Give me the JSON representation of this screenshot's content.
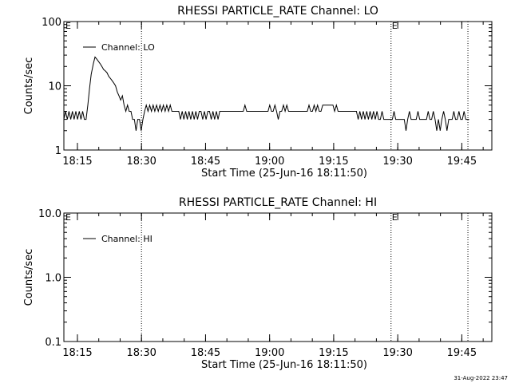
{
  "footer": {
    "timestamp": "31-Aug-2022 23:47"
  },
  "colors": {
    "background": "#ffffff",
    "foreground": "#000000"
  },
  "chart_data": [
    {
      "type": "line",
      "title": "RHESSI PARTICLE_RATE Channel: LO",
      "xlabel": "Start Time (25-Jun-16 18:11:50)",
      "ylabel": "Counts/sec",
      "yscale": "log",
      "ylim": [
        1,
        100
      ],
      "xlim_minutes": [
        0,
        100.2
      ],
      "xticks": [
        {
          "label": "18:15",
          "minute": 3.17
        },
        {
          "label": "18:30",
          "minute": 18.17
        },
        {
          "label": "18:45",
          "minute": 33.17
        },
        {
          "label": "19:00",
          "minute": 48.17
        },
        {
          "label": "19:15",
          "minute": 63.17
        },
        {
          "label": "19:30",
          "minute": 78.17
        },
        {
          "label": "19:45",
          "minute": 93.17
        }
      ],
      "yticks": [
        {
          "label": "1",
          "value": 1
        },
        {
          "label": "10",
          "value": 10
        },
        {
          "label": "100",
          "value": 100
        }
      ],
      "vlines": [
        {
          "time": "18:30",
          "minute": 18.17,
          "marker": ""
        },
        {
          "time": "19:28",
          "minute": 76.6,
          "marker": "E"
        },
        {
          "time": "19:46",
          "minute": 94.6,
          "marker": ""
        }
      ],
      "corner_marker": "E",
      "legend": {
        "entries": [
          "Channel: LO"
        ],
        "position": "top-left"
      },
      "grid": false,
      "series": [
        {
          "name": "Channel: LO",
          "points": [
            [
              0.0,
              3
            ],
            [
              0.4,
              4
            ],
            [
              0.8,
              3
            ],
            [
              1.2,
              4
            ],
            [
              1.6,
              3
            ],
            [
              2.0,
              4
            ],
            [
              2.4,
              3
            ],
            [
              2.8,
              4
            ],
            [
              3.2,
              3
            ],
            [
              3.6,
              4
            ],
            [
              4.0,
              3
            ],
            [
              4.4,
              4
            ],
            [
              4.8,
              3
            ],
            [
              5.2,
              3
            ],
            [
              5.6,
              5
            ],
            [
              6.0,
              9
            ],
            [
              6.4,
              15
            ],
            [
              6.9,
              22
            ],
            [
              7.3,
              28
            ],
            [
              7.7,
              26
            ],
            [
              8.1,
              24
            ],
            [
              8.5,
              22
            ],
            [
              8.9,
              20
            ],
            [
              9.3,
              18
            ],
            [
              9.7,
              17
            ],
            [
              10.1,
              16
            ],
            [
              10.5,
              14
            ],
            [
              10.9,
              13
            ],
            [
              11.3,
              12
            ],
            [
              11.7,
              11
            ],
            [
              12.1,
              10
            ],
            [
              12.5,
              8
            ],
            [
              12.9,
              7
            ],
            [
              13.3,
              6
            ],
            [
              13.7,
              7
            ],
            [
              14.1,
              5
            ],
            [
              14.5,
              4
            ],
            [
              14.9,
              5
            ],
            [
              15.3,
              4
            ],
            [
              15.7,
              4
            ],
            [
              16.1,
              3
            ],
            [
              16.5,
              3
            ],
            [
              16.9,
              2
            ],
            [
              17.3,
              3
            ],
            [
              17.7,
              3
            ],
            [
              18.1,
              2
            ],
            [
              18.5,
              3
            ],
            [
              18.9,
              4
            ],
            [
              19.3,
              5
            ],
            [
              19.7,
              4
            ],
            [
              20.1,
              5
            ],
            [
              20.5,
              4
            ],
            [
              20.9,
              5
            ],
            [
              21.3,
              4
            ],
            [
              21.7,
              5
            ],
            [
              22.1,
              4
            ],
            [
              22.5,
              5
            ],
            [
              22.9,
              4
            ],
            [
              23.3,
              5
            ],
            [
              23.7,
              4
            ],
            [
              24.1,
              5
            ],
            [
              24.5,
              4
            ],
            [
              24.9,
              5
            ],
            [
              25.3,
              4
            ],
            [
              25.7,
              4
            ],
            [
              26.1,
              4
            ],
            [
              26.5,
              4
            ],
            [
              26.9,
              4
            ],
            [
              27.3,
              3
            ],
            [
              27.7,
              4
            ],
            [
              28.1,
              3
            ],
            [
              28.5,
              4
            ],
            [
              28.9,
              3
            ],
            [
              29.3,
              4
            ],
            [
              29.7,
              3
            ],
            [
              30.1,
              4
            ],
            [
              30.5,
              3
            ],
            [
              30.9,
              4
            ],
            [
              31.3,
              3
            ],
            [
              31.7,
              4
            ],
            [
              32.1,
              4
            ],
            [
              32.5,
              3
            ],
            [
              32.9,
              4
            ],
            [
              33.3,
              3
            ],
            [
              33.7,
              4
            ],
            [
              34.1,
              4
            ],
            [
              34.5,
              3
            ],
            [
              34.9,
              4
            ],
            [
              35.3,
              3
            ],
            [
              35.7,
              4
            ],
            [
              36.1,
              3
            ],
            [
              36.5,
              4
            ],
            [
              37.0,
              4
            ],
            [
              37.5,
              4
            ],
            [
              38.0,
              4
            ],
            [
              38.5,
              4
            ],
            [
              39.0,
              4
            ],
            [
              39.5,
              4
            ],
            [
              40.0,
              4
            ],
            [
              40.5,
              4
            ],
            [
              41.0,
              4
            ],
            [
              41.5,
              4
            ],
            [
              42.0,
              4
            ],
            [
              42.4,
              5
            ],
            [
              42.8,
              4
            ],
            [
              43.3,
              4
            ],
            [
              43.8,
              4
            ],
            [
              44.3,
              4
            ],
            [
              44.8,
              4
            ],
            [
              45.3,
              4
            ],
            [
              45.8,
              4
            ],
            [
              46.3,
              4
            ],
            [
              46.8,
              4
            ],
            [
              47.3,
              4
            ],
            [
              47.8,
              4
            ],
            [
              48.2,
              5
            ],
            [
              48.6,
              4
            ],
            [
              49.0,
              4
            ],
            [
              49.4,
              5
            ],
            [
              49.8,
              4
            ],
            [
              50.2,
              3
            ],
            [
              50.6,
              4
            ],
            [
              51.0,
              4
            ],
            [
              51.4,
              5
            ],
            [
              51.8,
              4
            ],
            [
              52.2,
              5
            ],
            [
              52.6,
              4
            ],
            [
              53.0,
              4
            ],
            [
              53.5,
              4
            ],
            [
              54.0,
              4
            ],
            [
              54.5,
              4
            ],
            [
              55.0,
              4
            ],
            [
              55.5,
              4
            ],
            [
              56.0,
              4
            ],
            [
              56.5,
              4
            ],
            [
              57.0,
              4
            ],
            [
              57.4,
              5
            ],
            [
              57.8,
              4
            ],
            [
              58.2,
              4
            ],
            [
              58.6,
              5
            ],
            [
              59.0,
              4
            ],
            [
              59.4,
              5
            ],
            [
              59.8,
              4
            ],
            [
              60.2,
              4
            ],
            [
              60.6,
              5
            ],
            [
              61.0,
              5
            ],
            [
              61.4,
              5
            ],
            [
              61.8,
              5
            ],
            [
              62.2,
              5
            ],
            [
              62.6,
              5
            ],
            [
              63.0,
              5
            ],
            [
              63.4,
              4
            ],
            [
              63.8,
              5
            ],
            [
              64.2,
              4
            ],
            [
              64.6,
              4
            ],
            [
              65.0,
              4
            ],
            [
              65.5,
              4
            ],
            [
              66.0,
              4
            ],
            [
              66.5,
              4
            ],
            [
              67.0,
              4
            ],
            [
              67.5,
              4
            ],
            [
              68.0,
              4
            ],
            [
              68.5,
              4
            ],
            [
              68.9,
              3
            ],
            [
              69.3,
              4
            ],
            [
              69.7,
              3
            ],
            [
              70.1,
              4
            ],
            [
              70.5,
              3
            ],
            [
              70.9,
              4
            ],
            [
              71.3,
              3
            ],
            [
              71.7,
              4
            ],
            [
              72.1,
              3
            ],
            [
              72.5,
              4
            ],
            [
              72.9,
              3
            ],
            [
              73.3,
              4
            ],
            [
              73.7,
              3
            ],
            [
              74.1,
              3
            ],
            [
              74.5,
              4
            ],
            [
              74.9,
              3
            ],
            [
              75.3,
              3
            ],
            [
              75.7,
              3
            ],
            [
              76.1,
              3
            ],
            [
              76.5,
              3
            ],
            [
              76.9,
              3
            ],
            [
              77.3,
              4
            ],
            [
              77.7,
              3
            ],
            [
              78.1,
              3
            ],
            [
              78.5,
              3
            ],
            [
              78.9,
              3
            ],
            [
              79.3,
              3
            ],
            [
              79.7,
              3
            ],
            [
              80.1,
              2
            ],
            [
              80.5,
              3
            ],
            [
              80.9,
              4
            ],
            [
              81.3,
              3
            ],
            [
              81.7,
              3
            ],
            [
              82.1,
              3
            ],
            [
              82.5,
              3
            ],
            [
              82.9,
              4
            ],
            [
              83.3,
              3
            ],
            [
              83.7,
              3
            ],
            [
              84.1,
              3
            ],
            [
              84.5,
              3
            ],
            [
              84.9,
              3
            ],
            [
              85.3,
              4
            ],
            [
              85.7,
              3
            ],
            [
              86.1,
              3
            ],
            [
              86.5,
              4
            ],
            [
              86.9,
              3
            ],
            [
              87.3,
              2
            ],
            [
              87.7,
              3
            ],
            [
              88.1,
              2
            ],
            [
              88.5,
              3
            ],
            [
              88.9,
              4
            ],
            [
              89.3,
              3
            ],
            [
              89.7,
              2
            ],
            [
              90.1,
              3
            ],
            [
              90.5,
              3
            ],
            [
              90.9,
              3
            ],
            [
              91.3,
              4
            ],
            [
              91.7,
              3
            ],
            [
              92.1,
              3
            ],
            [
              92.5,
              4
            ],
            [
              92.9,
              3
            ],
            [
              93.3,
              3
            ],
            [
              93.7,
              4
            ],
            [
              94.1,
              3
            ],
            [
              94.5,
              3
            ],
            [
              94.9,
              3
            ]
          ]
        }
      ]
    },
    {
      "type": "line",
      "title": "RHESSI PARTICLE_RATE Channel: HI",
      "xlabel": "Start Time (25-Jun-16 18:11:50)",
      "ylabel": "Counts/sec",
      "yscale": "log",
      "ylim": [
        0.1,
        10
      ],
      "xlim_minutes": [
        0,
        100.2
      ],
      "xticks": [
        {
          "label": "18:15",
          "minute": 3.17
        },
        {
          "label": "18:30",
          "minute": 18.17
        },
        {
          "label": "18:45",
          "minute": 33.17
        },
        {
          "label": "19:00",
          "minute": 48.17
        },
        {
          "label": "19:15",
          "minute": 63.17
        },
        {
          "label": "19:30",
          "minute": 78.17
        },
        {
          "label": "19:45",
          "minute": 93.17
        }
      ],
      "yticks": [
        {
          "label": "0.1",
          "value": 0.1
        },
        {
          "label": "1.0",
          "value": 1
        },
        {
          "label": "10.0",
          "value": 10
        }
      ],
      "vlines": [
        {
          "time": "18:30",
          "minute": 18.17,
          "marker": ""
        },
        {
          "time": "19:28",
          "minute": 76.6,
          "marker": "E"
        },
        {
          "time": "19:46",
          "minute": 94.6,
          "marker": ""
        }
      ],
      "corner_marker": "E",
      "legend": {
        "entries": [
          "Channel: HI"
        ],
        "position": "top-left"
      },
      "grid": false,
      "series": [
        {
          "name": "Channel: HI",
          "points": []
        }
      ]
    }
  ]
}
